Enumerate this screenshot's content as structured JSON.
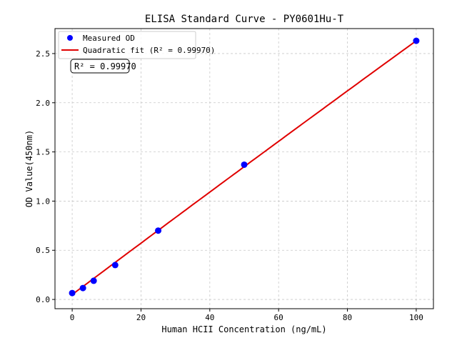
{
  "chart_data": {
    "type": "scatter",
    "title": "ELISA Standard Curve - PY0601Hu-T",
    "xlabel": "Human HCII Concentration (ng/mL)",
    "ylabel": "OD Value(450nm)",
    "xlim": [
      -5,
      105
    ],
    "ylim": [
      -0.094,
      2.754
    ],
    "xticks": [
      0,
      20,
      40,
      60,
      80,
      100
    ],
    "yticks": [
      0.0,
      0.5,
      1.0,
      1.5,
      2.0,
      2.5
    ],
    "ytick_labels": [
      "0.0",
      "0.5",
      "1.0",
      "1.5",
      "2.0",
      "2.5"
    ],
    "grid": true,
    "legend_placement": "top-left",
    "series": [
      {
        "name": "Measured OD",
        "kind": "scatter",
        "color": "#0000ff",
        "x": [
          0,
          3.125,
          6.25,
          12.5,
          25,
          50,
          100
        ],
        "y": [
          0.065,
          0.116,
          0.19,
          0.35,
          0.7,
          1.37,
          2.63
        ]
      },
      {
        "name": "Quadratic fit (R² = 0.99970)",
        "kind": "line",
        "color": "#e00000",
        "coefficients": {
          "a": 0.05,
          "b": 0.0262,
          "c": -4e-06
        }
      }
    ],
    "annotation": "R² = 0.99970"
  }
}
